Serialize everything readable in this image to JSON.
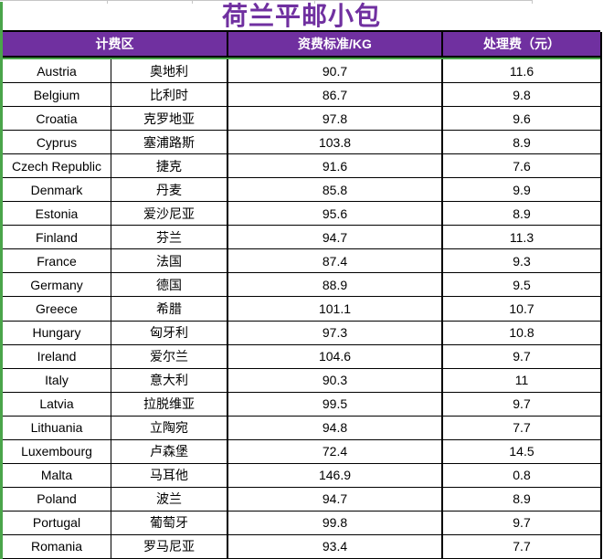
{
  "title": "荷兰平邮小包",
  "colors": {
    "accent_purple": "#7030a0",
    "header_text": "#ffffff",
    "selection_green": "#4aa54a",
    "grid_black": "#000000",
    "faint_gridline_grey": "#c6c6c6"
  },
  "table": {
    "headers": [
      "计费区",
      "资费标准/KG",
      "处理费（元）"
    ],
    "rows": [
      {
        "en": "Austria",
        "zh": "奥地利",
        "rate": "90.7",
        "fee": "11.6"
      },
      {
        "en": "Belgium",
        "zh": "比利时",
        "rate": "86.7",
        "fee": "9.8"
      },
      {
        "en": "Croatia",
        "zh": "克罗地亚",
        "rate": "97.8",
        "fee": "9.6"
      },
      {
        "en": "Cyprus",
        "zh": "塞浦路斯",
        "rate": "103.8",
        "fee": "8.9"
      },
      {
        "en": "Czech Republic",
        "zh": "捷克",
        "rate": "91.6",
        "fee": "7.6"
      },
      {
        "en": "Denmark",
        "zh": "丹麦",
        "rate": "85.8",
        "fee": "9.9"
      },
      {
        "en": "Estonia",
        "zh": "爱沙尼亚",
        "rate": "95.6",
        "fee": "8.9"
      },
      {
        "en": "Finland",
        "zh": "芬兰",
        "rate": "94.7",
        "fee": "11.3"
      },
      {
        "en": "France",
        "zh": "法国",
        "rate": "87.4",
        "fee": "9.3"
      },
      {
        "en": "Germany",
        "zh": "德国",
        "rate": "88.9",
        "fee": "9.5"
      },
      {
        "en": "Greece",
        "zh": "希腊",
        "rate": "101.1",
        "fee": "10.7"
      },
      {
        "en": "Hungary",
        "zh": "匈牙利",
        "rate": "97.3",
        "fee": "10.8"
      },
      {
        "en": "Ireland",
        "zh": "爱尔兰",
        "rate": "104.6",
        "fee": "9.7"
      },
      {
        "en": "Italy",
        "zh": "意大利",
        "rate": "90.3",
        "fee": "11"
      },
      {
        "en": "Latvia",
        "zh": "拉脱维亚",
        "rate": "99.5",
        "fee": "9.7"
      },
      {
        "en": "Lithuania",
        "zh": "立陶宛",
        "rate": "94.8",
        "fee": "7.7"
      },
      {
        "en": "Luxembourg",
        "zh": "卢森堡",
        "rate": "72.4",
        "fee": "14.5"
      },
      {
        "en": "Malta",
        "zh": "马耳他",
        "rate": "146.9",
        "fee": "0.8"
      },
      {
        "en": "Poland",
        "zh": "波兰",
        "rate": "94.7",
        "fee": "8.9"
      },
      {
        "en": "Portugal",
        "zh": "葡萄牙",
        "rate": "99.8",
        "fee": "9.7"
      },
      {
        "en": "Romania",
        "zh": "罗马尼亚",
        "rate": "93.4",
        "fee": "7.7"
      }
    ]
  }
}
